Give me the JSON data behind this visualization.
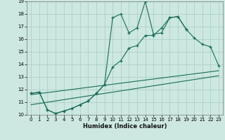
{
  "xlabel": "Humidex (Indice chaleur)",
  "bg_color": "#cce8e0",
  "grid_color": "#aaccc4",
  "line_color": "#1a6b5a",
  "xlim": [
    -0.5,
    23.5
  ],
  "ylim": [
    10,
    19
  ],
  "xticks": [
    0,
    1,
    2,
    3,
    4,
    5,
    6,
    7,
    8,
    9,
    10,
    11,
    12,
    13,
    14,
    15,
    16,
    17,
    18,
    19,
    20,
    21,
    22,
    23
  ],
  "yticks": [
    10,
    11,
    12,
    13,
    14,
    15,
    16,
    17,
    18,
    19
  ],
  "series1_x": [
    0,
    1,
    2,
    3,
    4,
    5,
    6,
    7,
    8,
    9,
    10,
    11,
    12,
    13,
    14,
    15,
    16,
    17,
    18,
    19,
    20,
    21,
    22,
    23
  ],
  "series1_y": [
    11.7,
    11.8,
    10.4,
    10.1,
    10.3,
    10.5,
    10.8,
    11.1,
    11.7,
    12.4,
    13.8,
    14.3,
    15.3,
    15.5,
    16.3,
    16.3,
    16.9,
    17.7,
    17.8,
    16.8,
    16.1,
    15.6,
    15.4,
    13.9
  ],
  "series2_x": [
    0,
    1,
    2,
    3,
    4,
    5,
    6,
    7,
    8,
    9,
    10,
    11,
    12,
    13,
    14,
    15,
    16,
    17,
    18,
    19,
    20,
    21,
    22,
    23
  ],
  "series2_y": [
    11.7,
    11.8,
    10.4,
    10.1,
    10.3,
    10.5,
    10.8,
    11.1,
    11.7,
    12.4,
    17.7,
    18.0,
    16.5,
    16.9,
    19.0,
    16.4,
    16.5,
    17.7,
    17.8,
    16.8,
    null,
    null,
    null,
    null
  ],
  "series3_x": [
    0,
    23
  ],
  "series3_y": [
    11.6,
    13.5
  ],
  "series4_x": [
    0,
    23
  ],
  "series4_y": [
    10.8,
    13.1
  ]
}
